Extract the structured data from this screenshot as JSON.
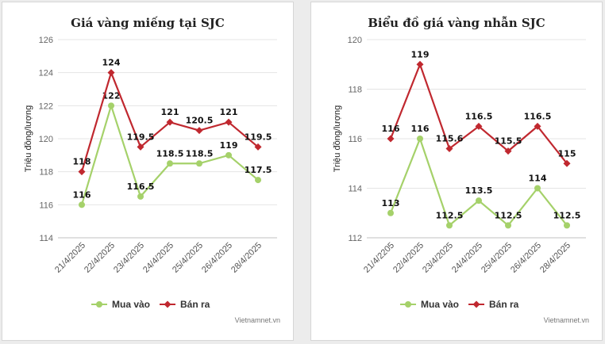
{
  "colors": {
    "mua": "#a5d16a",
    "ban": "#c0282f"
  },
  "source_credit": "Vietnamnet.vn",
  "chart_data": [
    {
      "type": "line",
      "title": "Giá vàng miếng tại SJC",
      "ylabel": "Triệu đồng/lượng",
      "xlabel": "",
      "ylim": [
        114,
        126
      ],
      "yticks": [
        114,
        116,
        118,
        120,
        122,
        124,
        126
      ],
      "categories": [
        "21/4/2025",
        "22/4/2025",
        "23/4/2025",
        "24/4/2025",
        "25/4/2025",
        "26/4/2025",
        "28/4/2025"
      ],
      "legend_position": "bottom",
      "series": [
        {
          "name": "Mua vào",
          "values": [
            116,
            122,
            116.5,
            118.5,
            118.5,
            119,
            117.5
          ],
          "labels": [
            "116",
            "122",
            "116.5",
            "118.5",
            "118.5",
            "119",
            "117.5"
          ]
        },
        {
          "name": "Bán ra",
          "values": [
            118,
            124,
            119.5,
            121,
            120.5,
            121,
            119.5
          ],
          "labels": [
            "118",
            "124",
            "119.5",
            "121",
            "120.5",
            "121",
            "119.5"
          ]
        }
      ]
    },
    {
      "type": "line",
      "title": "Biểu đồ giá vàng nhẫn SJC",
      "ylabel": "Triệu đồng/lượng",
      "xlabel": "",
      "ylim": [
        112,
        120
      ],
      "yticks": [
        112,
        114,
        116,
        118,
        120
      ],
      "categories": [
        "21/4/2205",
        "22/4/2025",
        "23/4/2025",
        "24/4/2025",
        "25/4/2025",
        "26/4/2025",
        "28/4/2025"
      ],
      "legend_position": "bottom",
      "series": [
        {
          "name": "Mua vào",
          "values": [
            113,
            116,
            112.5,
            113.5,
            112.5,
            114,
            112.5
          ],
          "labels": [
            "113",
            "116",
            "112.5",
            "113.5",
            "112.5",
            "114",
            "112.5"
          ]
        },
        {
          "name": "Bán ra",
          "values": [
            116,
            119,
            115.6,
            116.5,
            115.5,
            116.5,
            115
          ],
          "labels": [
            "116",
            "119",
            "115.6",
            "116.5",
            "115.5",
            "116.5",
            "115"
          ]
        }
      ]
    }
  ]
}
